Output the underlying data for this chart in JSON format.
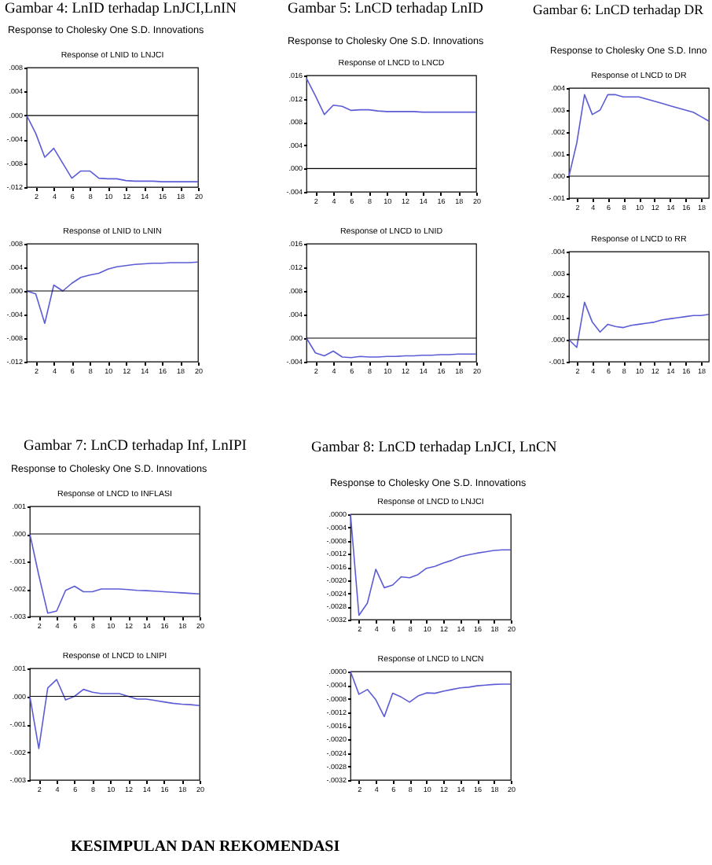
{
  "chart_data": [
    {
      "type": "line",
      "title": "Response of LNID to LNJCI",
      "annotations": [
        "Gambar 4: LnID terhadap LnJCI,LnIN",
        "Response to Cholesky One S.D. Innovations"
      ],
      "color": "#5c5cd6",
      "x": [
        1,
        2,
        3,
        4,
        5,
        6,
        7,
        8,
        9,
        10,
        11,
        12,
        13,
        14,
        15,
        16,
        17,
        18,
        19,
        20
      ],
      "values": [
        0,
        -0.003,
        -0.007,
        -0.0055,
        -0.008,
        -0.0105,
        -0.0093,
        -0.0093,
        -0.0105,
        -0.0106,
        -0.0106,
        -0.0109,
        -0.011,
        -0.011,
        -0.011,
        -0.0111,
        -0.0111,
        -0.0111,
        -0.0111,
        -0.0111
      ],
      "xlim": [
        1,
        20
      ],
      "xticks": [
        2,
        4,
        6,
        8,
        10,
        12,
        14,
        16,
        18,
        20
      ],
      "ylim": [
        -0.012,
        0.008
      ],
      "yticks": [
        {
          "value": -0.012,
          "label": "-.012"
        },
        {
          "value": -0.008,
          "label": "-.008"
        },
        {
          "value": -0.004,
          "label": "-.004"
        },
        {
          "value": 0,
          "label": ".000"
        },
        {
          "value": 0.004,
          "label": ".004"
        },
        {
          "value": 0.008,
          "label": ".008"
        }
      ],
      "ref_lines": [
        {
          "axis": "y",
          "value": 0
        }
      ]
    },
    {
      "type": "line",
      "title": "Response of LNID to LNIN",
      "color": "#5c5cd6",
      "x": [
        1,
        2,
        3,
        4,
        5,
        6,
        7,
        8,
        9,
        10,
        11,
        12,
        13,
        14,
        15,
        16,
        17,
        18,
        19,
        20
      ],
      "values": [
        0,
        -0.0005,
        -0.0055,
        0.001,
        0,
        0.0013,
        0.0023,
        0.0027,
        0.003,
        0.0037,
        0.0041,
        0.0043,
        0.0045,
        0.0046,
        0.0047,
        0.0047,
        0.0048,
        0.0048,
        0.0048,
        0.0049
      ],
      "xlim": [
        1,
        20
      ],
      "xticks": [
        2,
        4,
        6,
        8,
        10,
        12,
        14,
        16,
        18,
        20
      ],
      "ylim": [
        -0.012,
        0.008
      ],
      "yticks": [
        {
          "value": -0.012,
          "label": "-.012"
        },
        {
          "value": -0.008,
          "label": "-.008"
        },
        {
          "value": -0.004,
          "label": "-.004"
        },
        {
          "value": 0,
          "label": ".000"
        },
        {
          "value": 0.004,
          "label": ".004"
        },
        {
          "value": 0.008,
          "label": ".008"
        }
      ],
      "ref_lines": [
        {
          "axis": "y",
          "value": 0
        }
      ]
    },
    {
      "type": "line",
      "title": "Response of LNCD to LNCD",
      "annotations": [
        "Gambar 5: LnCD terhadap LnID",
        "Response to Cholesky One S.D. Innovations"
      ],
      "color": "#5c5cd6",
      "x": [
        1,
        2,
        3,
        4,
        5,
        6,
        7,
        8,
        9,
        10,
        11,
        12,
        13,
        14,
        15,
        16,
        17,
        18,
        19,
        20
      ],
      "values": [
        0.0155,
        0.0125,
        0.0093,
        0.0109,
        0.0107,
        0.01,
        0.0101,
        0.0101,
        0.0099,
        0.0098,
        0.0098,
        0.0098,
        0.0098,
        0.0097,
        0.0097,
        0.0097,
        0.0097,
        0.0097,
        0.0097,
        0.0097
      ],
      "xlim": [
        1,
        20
      ],
      "xticks": [
        2,
        4,
        6,
        8,
        10,
        12,
        14,
        16,
        18,
        20
      ],
      "ylim": [
        -0.004,
        0.016
      ],
      "yticks": [
        {
          "value": -0.004,
          "label": "-.004"
        },
        {
          "value": 0,
          "label": ".000"
        },
        {
          "value": 0.004,
          "label": ".004"
        },
        {
          "value": 0.008,
          "label": ".008"
        },
        {
          "value": 0.012,
          "label": ".012"
        },
        {
          "value": 0.016,
          "label": ".016"
        }
      ],
      "ref_lines": [
        {
          "axis": "y",
          "value": 0
        }
      ]
    },
    {
      "type": "line",
      "title": "Response of LNCD to LNID",
      "color": "#5c5cd6",
      "x": [
        1,
        2,
        3,
        4,
        5,
        6,
        7,
        8,
        9,
        10,
        11,
        12,
        13,
        14,
        15,
        16,
        17,
        18,
        19,
        20
      ],
      "values": [
        0,
        -0.0025,
        -0.003,
        -0.0022,
        -0.0032,
        -0.0033,
        -0.0031,
        -0.0032,
        -0.0032,
        -0.0031,
        -0.0031,
        -0.003,
        -0.003,
        -0.0029,
        -0.0029,
        -0.0028,
        -0.0028,
        -0.0027,
        -0.0027,
        -0.0027
      ],
      "xlim": [
        1,
        20
      ],
      "xticks": [
        2,
        4,
        6,
        8,
        10,
        12,
        14,
        16,
        18,
        20
      ],
      "ylim": [
        -0.004,
        0.016
      ],
      "yticks": [
        {
          "value": -0.004,
          "label": "-.004"
        },
        {
          "value": 0,
          "label": ".000"
        },
        {
          "value": 0.004,
          "label": ".004"
        },
        {
          "value": 0.008,
          "label": ".008"
        },
        {
          "value": 0.012,
          "label": ".012"
        },
        {
          "value": 0.016,
          "label": ".016"
        }
      ],
      "ref_lines": [
        {
          "axis": "y",
          "value": 0
        }
      ]
    },
    {
      "type": "line",
      "title": "Response of LNCD to DR",
      "annotations": [
        "Gambar 6: LnCD terhadap DR",
        "Response to Cholesky One S.D. Inno"
      ],
      "color": "#5c5cd6",
      "x": [
        1,
        2,
        3,
        4,
        5,
        6,
        7,
        8,
        9,
        10,
        11,
        12,
        13,
        14,
        15,
        16,
        17,
        18,
        19
      ],
      "values": [
        0,
        0.0015,
        0.0037,
        0.0028,
        0.003,
        0.0037,
        0.0037,
        0.0036,
        0.0036,
        0.0036,
        0.0035,
        0.0034,
        0.0033,
        0.0032,
        0.0031,
        0.003,
        0.0029,
        0.0027,
        0.0025
      ],
      "xlim": [
        1,
        19
      ],
      "xticks": [
        2,
        4,
        6,
        8,
        10,
        12,
        14,
        16,
        18
      ],
      "ylim": [
        -0.001,
        0.004
      ],
      "yticks": [
        {
          "value": -0.001,
          "label": "-.001"
        },
        {
          "value": 0,
          "label": ".000"
        },
        {
          "value": 0.001,
          "label": ".001"
        },
        {
          "value": 0.002,
          "label": ".002"
        },
        {
          "value": 0.003,
          "label": ".003"
        },
        {
          "value": 0.004,
          "label": ".004"
        }
      ],
      "ref_lines": [
        {
          "axis": "y",
          "value": 0
        }
      ]
    },
    {
      "type": "line",
      "title": "Response of LNCD to RR",
      "color": "#5c5cd6",
      "x": [
        1,
        2,
        3,
        4,
        5,
        6,
        7,
        8,
        9,
        10,
        11,
        12,
        13,
        14,
        15,
        16,
        17,
        18,
        19
      ],
      "values": [
        0,
        -0.00035,
        0.0017,
        0.0008,
        0.00035,
        0.0007,
        0.0006,
        0.00055,
        0.00065,
        0.0007,
        0.00075,
        0.0008,
        0.0009,
        0.00095,
        0.001,
        0.00105,
        0.0011,
        0.0011,
        0.00115
      ],
      "xlim": [
        1,
        19
      ],
      "xticks": [
        2,
        4,
        6,
        8,
        10,
        12,
        14,
        16,
        18
      ],
      "ylim": [
        -0.001,
        0.004
      ],
      "yticks": [
        {
          "value": -0.001,
          "label": "-.001"
        },
        {
          "value": 0,
          "label": ".000"
        },
        {
          "value": 0.001,
          "label": ".001"
        },
        {
          "value": 0.002,
          "label": ".002"
        },
        {
          "value": 0.003,
          "label": ".003"
        },
        {
          "value": 0.004,
          "label": ".004"
        }
      ],
      "ref_lines": [
        {
          "axis": "y",
          "value": 0
        }
      ]
    },
    {
      "type": "line",
      "title": "Response of LNCD to INFLASI",
      "annotations": [
        "Gambar 7: LnCD terhadap Inf, LnIPI",
        "Response to Cholesky One S.D. Innovations"
      ],
      "color": "#5c5cd6",
      "x": [
        1,
        2,
        3,
        4,
        5,
        6,
        7,
        8,
        9,
        10,
        11,
        12,
        13,
        14,
        15,
        16,
        17,
        18,
        19,
        20
      ],
      "values": [
        0,
        -0.0015,
        -0.00288,
        -0.0028,
        -0.00205,
        -0.0019,
        -0.0021,
        -0.0021,
        -0.002,
        -0.002,
        -0.002,
        -0.00202,
        -0.00205,
        -0.00206,
        -0.00208,
        -0.0021,
        -0.00212,
        -0.00214,
        -0.00216,
        -0.00218
      ],
      "xlim": [
        1,
        20
      ],
      "xticks": [
        2,
        4,
        6,
        8,
        10,
        12,
        14,
        16,
        18,
        20
      ],
      "ylim": [
        -0.003,
        0.001
      ],
      "yticks": [
        {
          "value": -0.003,
          "label": "-.003"
        },
        {
          "value": -0.002,
          "label": "-.002"
        },
        {
          "value": -0.001,
          "label": "-.001"
        },
        {
          "value": 0,
          "label": ".000"
        },
        {
          "value": 0.001,
          "label": ".001"
        }
      ],
      "ref_lines": [
        {
          "axis": "y",
          "value": 0
        }
      ]
    },
    {
      "type": "line",
      "title": "Response of LNCD to LNIPI",
      "color": "#5c5cd6",
      "x": [
        1,
        2,
        3,
        4,
        5,
        6,
        7,
        8,
        9,
        10,
        11,
        12,
        13,
        14,
        15,
        16,
        17,
        18,
        19,
        20
      ],
      "values": [
        0,
        -0.00187,
        0.0003,
        0.0006,
        -0.00013,
        0,
        0.00025,
        0.00015,
        0.0001,
        0.0001,
        0.0001,
        0,
        -0.0001,
        -0.0001,
        -0.00015,
        -0.0002,
        -0.00025,
        -0.00028,
        -0.0003,
        -0.00033
      ],
      "xlim": [
        1,
        20
      ],
      "xticks": [
        2,
        4,
        6,
        8,
        10,
        12,
        14,
        16,
        18,
        20
      ],
      "ylim": [
        -0.003,
        0.001
      ],
      "yticks": [
        {
          "value": -0.003,
          "label": "-.003"
        },
        {
          "value": -0.002,
          "label": "-.002"
        },
        {
          "value": -0.001,
          "label": "-.001"
        },
        {
          "value": 0,
          "label": ".000"
        },
        {
          "value": 0.001,
          "label": ".001"
        }
      ],
      "ref_lines": [
        {
          "axis": "y",
          "value": 0
        }
      ]
    },
    {
      "type": "line",
      "title": "Response of LNCD to LNJCI",
      "annotations": [
        "Gambar 8: LnCD terhadap LnJCI, LnCN",
        "Response to Cholesky One S.D. Innovations"
      ],
      "color": "#5c5cd6",
      "x": [
        1,
        2,
        3,
        4,
        5,
        6,
        7,
        8,
        9,
        10,
        11,
        12,
        13,
        14,
        15,
        16,
        17,
        18,
        19,
        20
      ],
      "values": [
        0,
        -0.00307,
        -0.0027,
        -0.00167,
        -0.00223,
        -0.00215,
        -0.0019,
        -0.00193,
        -0.00183,
        -0.00164,
        -0.00158,
        -0.00148,
        -0.0014,
        -0.00129,
        -0.00123,
        -0.00118,
        -0.00114,
        -0.0011,
        -0.00108,
        -0.00108
      ],
      "xlim": [
        1,
        20
      ],
      "xticks": [
        2,
        4,
        6,
        8,
        10,
        12,
        14,
        16,
        18,
        20
      ],
      "ylim": [
        -0.0032,
        0
      ],
      "yticks": [
        {
          "value": -0.0032,
          "label": "-.0032"
        },
        {
          "value": -0.0028,
          "label": "-.0028"
        },
        {
          "value": -0.0024,
          "label": "-.0024"
        },
        {
          "value": -0.002,
          "label": "-.0020"
        },
        {
          "value": -0.0016,
          "label": "-.0016"
        },
        {
          "value": -0.0012,
          "label": "-.0012"
        },
        {
          "value": -0.0008,
          "label": "-.0008"
        },
        {
          "value": -0.0004,
          "label": "-.0004"
        },
        {
          "value": 0,
          "label": ".0000"
        }
      ]
    },
    {
      "type": "line",
      "title": "Response of LNCD to LNCN",
      "annotations": [
        "KESIMPULAN DAN REKOMENDASI"
      ],
      "color": "#5c5cd6",
      "x": [
        1,
        2,
        3,
        4,
        5,
        6,
        7,
        8,
        9,
        10,
        11,
        12,
        13,
        14,
        15,
        16,
        17,
        18,
        19,
        20
      ],
      "values": [
        0,
        -0.00067,
        -0.00053,
        -0.00083,
        -0.00133,
        -0.00064,
        -0.00075,
        -0.0009,
        -0.00072,
        -0.00063,
        -0.00064,
        -0.00058,
        -0.00053,
        -0.00048,
        -0.00046,
        -0.00042,
        -0.0004,
        -0.00038,
        -0.00037,
        -0.00037
      ],
      "xlim": [
        1,
        20
      ],
      "xticks": [
        2,
        4,
        6,
        8,
        10,
        12,
        14,
        16,
        18,
        20
      ],
      "ylim": [
        -0.0032,
        0
      ],
      "yticks": [
        {
          "value": -0.0032,
          "label": "-.0032"
        },
        {
          "value": -0.0028,
          "label": "-.0028"
        },
        {
          "value": -0.0024,
          "label": "-.0024"
        },
        {
          "value": -0.002,
          "label": "-.0020"
        },
        {
          "value": -0.0016,
          "label": "-.0016"
        },
        {
          "value": -0.0012,
          "label": "-.0012"
        },
        {
          "value": -0.0008,
          "label": "-.0008"
        },
        {
          "value": -0.0004,
          "label": "-.0004"
        },
        {
          "value": 0,
          "label": ".0000"
        }
      ]
    }
  ]
}
